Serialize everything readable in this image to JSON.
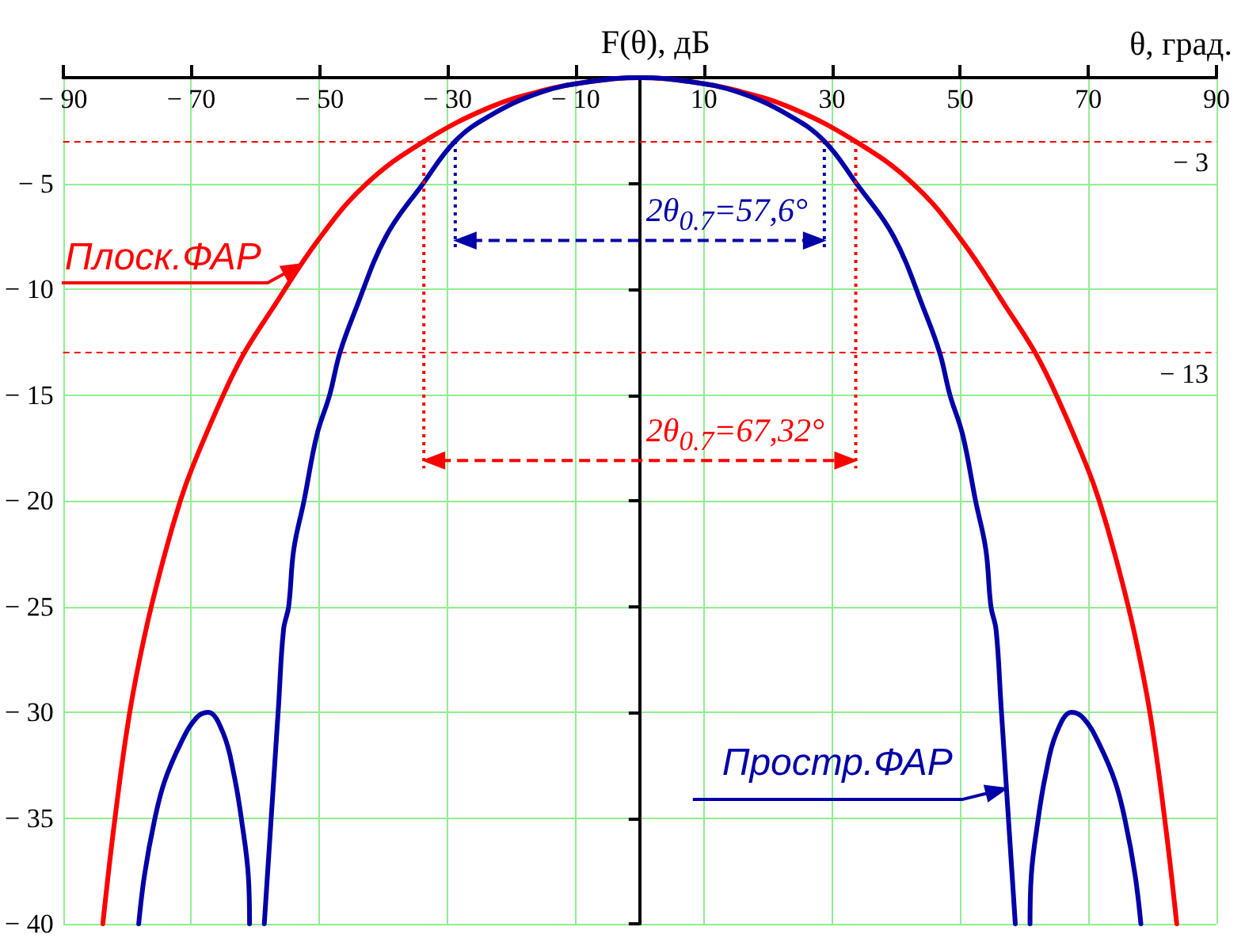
{
  "chart_data": {
    "type": "line",
    "xlabel": "θ, град.",
    "ylabel": "F(θ), дБ",
    "xlim": [
      -90,
      90
    ],
    "ylim": [
      -40,
      0
    ],
    "xticks": [
      {
        "value": -90,
        "label": "− 90"
      },
      {
        "value": -70,
        "label": "− 70"
      },
      {
        "value": -50,
        "label": "− 50"
      },
      {
        "value": -30,
        "label": "− 30"
      },
      {
        "value": -10,
        "label": "− 10"
      },
      10,
      30,
      50,
      70,
      90
    ],
    "yticks": [
      {
        "value": -5,
        "label": "− 5"
      },
      {
        "value": -10,
        "label": "− 10"
      },
      {
        "value": -15,
        "label": "− 15"
      },
      {
        "value": -20,
        "label": "− 20"
      },
      {
        "value": -25,
        "label": "− 25"
      },
      {
        "value": -30,
        "label": "− 30"
      },
      {
        "value": -35,
        "label": "− 35"
      },
      {
        "value": -40,
        "label": "− 40"
      }
    ],
    "grid": true,
    "series": [
      {
        "name": "Простр.ФАР",
        "color": "#0000a8",
        "x": [
          -78.2,
          -77.3,
          -75.8,
          -74.2,
          -71.7,
          -69.3,
          -67.4,
          -65,
          -63.3,
          -62.1,
          -61.1,
          -60.9,
          -59.7,
          -58.6,
          -58,
          -57.2,
          -56.4,
          -55.6,
          -54.8,
          -54,
          -52.4,
          -50.4,
          -48.4,
          -46.8,
          -44.4,
          -39.6,
          -33.8,
          -28.8,
          -23.4,
          -15.5,
          -8,
          0,
          8,
          15.5,
          23.4,
          28.8,
          33.8,
          39.6,
          44.4,
          46.8,
          48.4,
          50.4,
          52.4,
          54,
          54.8,
          55.6,
          56.4,
          57.2,
          58,
          58.6,
          59.7,
          60.9,
          61.1,
          62.1,
          63.3,
          65,
          67.4,
          69.3,
          71.7,
          74.2,
          75.8,
          77.3,
          78.2
        ],
        "values": [
          -40,
          -37.7,
          -35.2,
          -33.3,
          -31.5,
          -30.3,
          -30,
          -31,
          -33,
          -35.2,
          -37.7,
          -40,
          null,
          -40,
          -37.2,
          -33.5,
          -29.8,
          -26.1,
          -25,
          -22.3,
          -20,
          -16.9,
          -15,
          -13,
          -11,
          -7.5,
          -5,
          -3,
          -1.8,
          -0.7,
          -0.2,
          0,
          -0.2,
          -0.7,
          -1.8,
          -3,
          -5,
          -7.5,
          -11,
          -13,
          -15,
          -16.9,
          -20,
          -22.3,
          -25,
          -26.1,
          -29.8,
          -33.5,
          -37.2,
          -40,
          null,
          -40,
          -37.7,
          -35.2,
          -33,
          -31,
          -30,
          -30.3,
          -31.5,
          -33.3,
          -35.2,
          -37.7,
          -40
        ]
      },
      {
        "name": "Плоск.ФАР",
        "color": "#ff0000",
        "x": [
          -83.8,
          -81.9,
          -79.6,
          -77,
          -74.2,
          -71.7,
          -69.8,
          -65,
          -61.7,
          -57.5,
          -50,
          -42.6,
          -33.6,
          -23.4,
          -15,
          -8,
          0,
          8,
          15,
          23.4,
          33.6,
          42.6,
          50,
          57.5,
          61.7,
          65,
          69.8,
          71.7,
          74.2,
          77,
          79.6,
          81.9,
          83.8
        ],
        "values": [
          -40,
          -35,
          -30,
          -26,
          -22.6,
          -20,
          -18.4,
          -15,
          -13,
          -11,
          -7.6,
          -5,
          -3,
          -1.4,
          -0.6,
          -0.2,
          0,
          -0.2,
          -0.6,
          -1.4,
          -3,
          -5,
          -7.6,
          -11,
          -13,
          -15,
          -18.4,
          -20,
          -22.6,
          -26,
          -30,
          -35,
          -40
        ]
      }
    ],
    "ref_lines": [
      {
        "axis": "y",
        "value": -3,
        "label": "− 3",
        "color": "#ff0000",
        "line_style": "dashed"
      },
      {
        "axis": "y",
        "value": -13,
        "label": "− 13",
        "color": "#ff0000",
        "line_style": "dashed"
      }
    ],
    "annotations": [
      {
        "text": "2θ$_{0.7}$=57,6°",
        "x": 28.8,
        "y": -3
      },
      {
        "text": "2θ$_{0.7}$=67,32°",
        "x": 33.7,
        "y": -3
      }
    ]
  }
}
